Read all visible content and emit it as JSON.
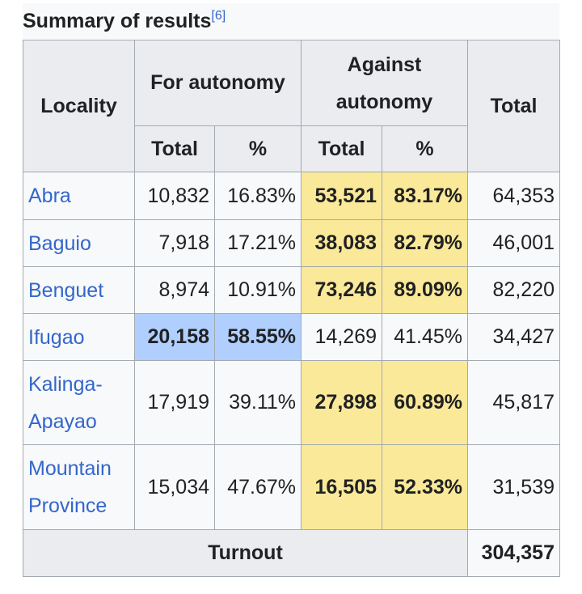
{
  "caption": {
    "title": "Summary of results",
    "ref": "[6]"
  },
  "headers": {
    "locality": "Locality",
    "for": "For autonomy",
    "against_line1": "Against",
    "against_line2": "autonomy",
    "total": "Total",
    "sub_total": "Total",
    "sub_pct": "%"
  },
  "rows": [
    {
      "locality": "Abra",
      "for_total": "10,832",
      "for_pct": "16.83%",
      "against_total": "53,521",
      "against_pct": "83.17%",
      "total": "64,353",
      "winner": "against"
    },
    {
      "locality": "Baguio",
      "for_total": "7,918",
      "for_pct": "17.21%",
      "against_total": "38,083",
      "against_pct": "82.79%",
      "total": "46,001",
      "winner": "against"
    },
    {
      "locality": "Benguet",
      "for_total": "8,974",
      "for_pct": "10.91%",
      "against_total": "73,246",
      "against_pct": "89.09%",
      "total": "82,220",
      "winner": "against"
    },
    {
      "locality": "Ifugao",
      "for_total": "20,158",
      "for_pct": "58.55%",
      "against_total": "14,269",
      "against_pct": "41.45%",
      "total": "34,427",
      "winner": "for"
    },
    {
      "locality_line1": "Kalinga-",
      "locality_line2": "Apayao",
      "for_total": "17,919",
      "for_pct": "39.11%",
      "against_total": "27,898",
      "against_pct": "60.89%",
      "total": "45,817",
      "winner": "against"
    },
    {
      "locality_line1": "Mountain",
      "locality_line2": "Province",
      "for_total": "15,034",
      "for_pct": "47.67%",
      "against_total": "16,505",
      "against_pct": "52.33%",
      "total": "31,539",
      "winner": "against"
    }
  ],
  "footer": {
    "label": "Turnout",
    "value": "304,357"
  },
  "colors": {
    "link": "#3366cc",
    "against_win": "#fbe99a",
    "for_win": "#b0cfff",
    "header_bg": "#eaecf0",
    "border": "#a2a9b1"
  }
}
